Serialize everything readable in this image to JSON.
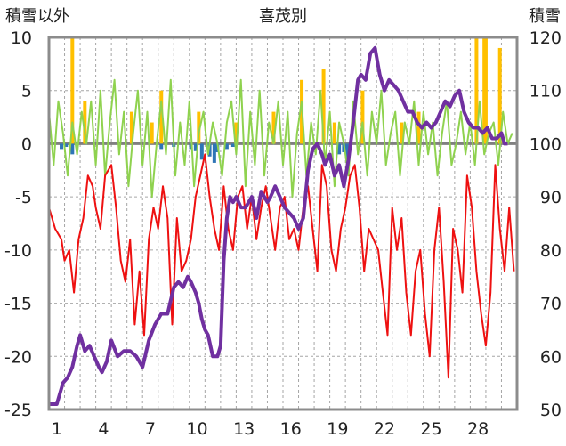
{
  "chart_data": {
    "type": "line",
    "title": "喜茂別",
    "left_axis_label": "積雪以外",
    "right_axis_label": "積雪",
    "ylim_left": [
      -25,
      10
    ],
    "ylim_right": [
      50,
      120
    ],
    "left_ticks": [
      "10",
      "5",
      "0",
      "-5",
      "-10",
      "-15",
      "-20",
      "-25"
    ],
    "right_ticks": [
      "120",
      "110",
      "100",
      "90",
      "80",
      "70",
      "60",
      "50"
    ],
    "x_range": [
      0,
      30
    ],
    "x_ticks": [
      "1",
      "4",
      "7",
      "10",
      "13",
      "16",
      "19",
      "22",
      "25",
      "28"
    ],
    "x_tick_days": [
      1,
      4,
      7,
      10,
      13,
      16,
      19,
      22,
      25,
      28
    ],
    "grid": true,
    "colors": {
      "temperature_min": "#ee1111",
      "temperature_range": "#8fd24f",
      "snow_depth": "#7030a0",
      "snowfall": "#ffc000",
      "precipitation": "#2e75b6",
      "zero_line": "#808080",
      "frame": "#8c8c8c"
    },
    "series": [
      {
        "key": "snow_depth",
        "axis": "right",
        "x": [
          0.0,
          0.5,
          0.9,
          1.2,
          1.5,
          1.8,
          2.0,
          2.3,
          2.6,
          2.9,
          3.2,
          3.4,
          3.7,
          4.0,
          4.4,
          4.8,
          5.2,
          5.6,
          6.0,
          6.4,
          6.8,
          7.2,
          7.6,
          8.0,
          8.3,
          8.6,
          8.9,
          9.1,
          9.4,
          9.6,
          9.8,
          10.0,
          10.2,
          10.5,
          10.8,
          11.0,
          11.2,
          11.4,
          11.6,
          11.8,
          12.0,
          12.3,
          12.6,
          13.0,
          13.3,
          13.6,
          14.0,
          14.2,
          14.5,
          14.8,
          15.1,
          15.4,
          15.7,
          16.0,
          16.3,
          16.6,
          16.9,
          17.2,
          17.5,
          17.7,
          18.0,
          18.3,
          18.6,
          18.9,
          19.2,
          19.5,
          19.8,
          20.0,
          20.3,
          20.6,
          20.9,
          21.2,
          21.5,
          21.8,
          22.1,
          22.4,
          22.7,
          23.0,
          23.3,
          23.6,
          23.9,
          24.2,
          24.5,
          24.8,
          25.1,
          25.4,
          25.7,
          26.0,
          26.3,
          26.6,
          26.9,
          27.2,
          27.5,
          27.8,
          28.1,
          28.4,
          28.7,
          29.0,
          29.2,
          29.4
        ],
        "values": [
          51,
          51,
          55,
          56,
          58,
          62,
          64,
          61,
          62,
          60,
          58,
          57,
          59,
          63,
          60,
          61,
          61,
          60,
          58,
          63,
          66,
          68,
          68,
          73,
          74,
          73,
          75,
          74,
          72,
          70,
          67,
          65,
          64,
          60,
          60,
          62,
          78,
          86,
          90,
          89,
          90,
          88,
          88,
          90,
          86,
          91,
          89,
          90,
          92,
          90,
          88,
          87,
          86,
          84,
          86,
          95,
          99,
          100,
          98,
          96,
          98,
          94,
          96,
          92,
          97,
          104,
          112,
          113,
          112,
          117,
          118,
          113,
          110,
          112,
          111,
          110,
          108,
          106,
          106,
          104,
          103,
          104,
          103,
          104,
          106,
          108,
          107,
          109,
          110,
          106,
          104,
          103,
          103,
          102,
          103,
          101,
          101,
          102,
          100,
          100
        ]
      },
      {
        "key": "temperature_min",
        "axis": "left",
        "x": [
          0.0,
          0.4,
          0.8,
          1.0,
          1.3,
          1.6,
          1.9,
          2.2,
          2.5,
          2.8,
          3.0,
          3.3,
          3.6,
          4.0,
          4.3,
          4.6,
          4.9,
          5.2,
          5.5,
          5.8,
          6.1,
          6.4,
          6.7,
          7.0,
          7.3,
          7.6,
          7.9,
          8.2,
          8.5,
          8.8,
          9.1,
          9.4,
          9.7,
          10.0,
          10.3,
          10.6,
          10.9,
          11.2,
          11.5,
          11.8,
          12.1,
          12.4,
          12.7,
          13.0,
          13.3,
          13.6,
          13.9,
          14.2,
          14.5,
          14.8,
          15.1,
          15.4,
          15.7,
          16.0,
          16.3,
          16.6,
          16.9,
          17.2,
          17.5,
          17.8,
          18.1,
          18.4,
          18.7,
          19.0,
          19.3,
          19.6,
          19.9,
          20.2,
          20.5,
          20.8,
          21.1,
          21.4,
          21.7,
          22.0,
          22.3,
          22.6,
          22.9,
          23.2,
          23.5,
          23.8,
          24.1,
          24.4,
          24.7,
          25.0,
          25.3,
          25.6,
          25.9,
          26.2,
          26.5,
          26.8,
          27.1,
          27.4,
          27.7,
          28.0,
          28.3,
          28.6,
          28.9,
          29.2,
          29.5,
          29.8
        ],
        "values": [
          -6,
          -8,
          -9,
          -11,
          -10,
          -14,
          -9,
          -7,
          -3,
          -4,
          -6,
          -8,
          -3,
          -2,
          -6,
          -11,
          -13,
          -9,
          -17,
          -12,
          -18,
          -9,
          -6,
          -8,
          -4,
          -7,
          -17,
          -7,
          -12,
          -11,
          -9,
          -5,
          -3,
          -1,
          -5,
          -8,
          -10,
          -4,
          -8,
          -10,
          -5,
          -4,
          -8,
          -5,
          -9,
          -6,
          -4,
          -7,
          -10,
          -6,
          -5,
          -9,
          -8,
          -10,
          -6,
          -4,
          -8,
          -12,
          -2,
          -4,
          -10,
          -12,
          -8,
          -6,
          -3,
          -2,
          -6,
          -12,
          -8,
          -9,
          -10,
          -14,
          -18,
          -6,
          -10,
          -7,
          -14,
          -18,
          -12,
          -10,
          -16,
          -20,
          -10,
          -6,
          -13,
          -22,
          -8,
          -10,
          -14,
          -3,
          -6,
          -12,
          -16,
          -19,
          -14,
          -2,
          -8,
          -12,
          -6,
          -12
        ]
      },
      {
        "key": "temperature_range",
        "axis": "left",
        "x": [
          0.0,
          0.3,
          0.6,
          0.9,
          1.2,
          1.5,
          1.8,
          2.1,
          2.4,
          2.7,
          3.0,
          3.3,
          3.6,
          3.9,
          4.2,
          4.5,
          4.8,
          5.1,
          5.4,
          5.7,
          6.0,
          6.3,
          6.6,
          6.9,
          7.2,
          7.5,
          7.8,
          8.1,
          8.4,
          8.7,
          9.0,
          9.3,
          9.6,
          9.9,
          10.2,
          10.5,
          10.8,
          11.1,
          11.4,
          11.7,
          12.0,
          12.3,
          12.6,
          12.9,
          13.2,
          13.5,
          13.8,
          14.1,
          14.4,
          14.7,
          15.0,
          15.3,
          15.6,
          15.9,
          16.2,
          16.5,
          16.8,
          17.1,
          17.4,
          17.7,
          18.0,
          18.3,
          18.6,
          18.9,
          19.2,
          19.5,
          19.8,
          20.1,
          20.4,
          20.7,
          21.0,
          21.3,
          21.6,
          21.9,
          22.2,
          22.5,
          22.8,
          23.1,
          23.4,
          23.7,
          24.0,
          24.3,
          24.6,
          24.9,
          25.2,
          25.5,
          25.8,
          26.1,
          26.4,
          26.7,
          27.0,
          27.3,
          27.6,
          27.9,
          28.2,
          28.5,
          28.8,
          29.1,
          29.4,
          29.7
        ],
        "values": [
          3,
          -2,
          4,
          1,
          -3,
          2,
          -1,
          3,
          0,
          4,
          -2,
          5,
          -3,
          2,
          6,
          -1,
          3,
          -4,
          1,
          5,
          -2,
          3,
          -5,
          0,
          4,
          -1,
          6,
          -3,
          2,
          -2,
          4,
          -4,
          1,
          3,
          -1,
          2,
          0,
          -3,
          2,
          4,
          -1,
          6,
          -4,
          3,
          -2,
          5,
          -3,
          2,
          0,
          4,
          -2,
          3,
          -5,
          1,
          4,
          -3,
          2,
          -1,
          5,
          -2,
          3,
          -4,
          2,
          0,
          -3,
          4,
          -1,
          2,
          -3,
          3,
          0,
          5,
          -2,
          1,
          3,
          -3,
          2,
          0,
          4,
          -2,
          3,
          -1,
          2,
          -3,
          1,
          4,
          -2,
          0,
          3,
          -1,
          2,
          -2,
          4,
          -1,
          1,
          2,
          -2,
          3,
          0,
          1
        ]
      },
      {
        "key": "snowfall",
        "axis": "left",
        "x": [
          1.5,
          2.3,
          5.3,
          6.6,
          7.2,
          9.6,
          12.0,
          14.4,
          16.2,
          17.6,
          18.3,
          20.1,
          22.6,
          23.7,
          27.4,
          27.9,
          28.0,
          28.9
        ],
        "values": [
          10,
          4,
          3,
          2,
          5,
          3,
          2,
          3,
          6,
          7,
          2,
          5,
          2,
          3,
          10,
          10,
          10,
          9
        ]
      },
      {
        "key": "precipitation",
        "axis": "left",
        "x": [
          0.8,
          1.1,
          1.5,
          7.2,
          8.0,
          9.1,
          9.4,
          9.8,
          10.3,
          10.6,
          10.8,
          11.4,
          11.8,
          18.6,
          18.9,
          19.1
        ],
        "values": [
          -0.5,
          -0.3,
          -1.0,
          -0.5,
          -0.3,
          -0.5,
          -0.7,
          -1.5,
          -1.2,
          -1.8,
          -0.8,
          -0.5,
          -0.3,
          -1.0,
          -0.8,
          -1.5
        ]
      }
    ]
  }
}
